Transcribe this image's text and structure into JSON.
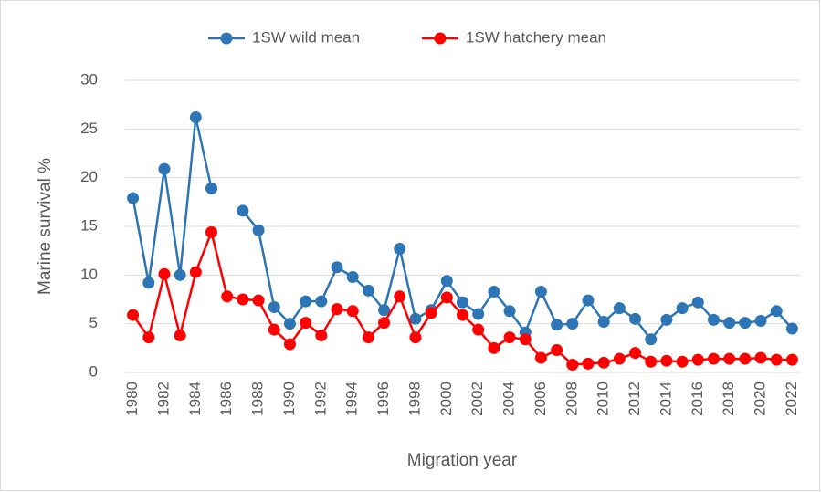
{
  "chart_data": {
    "type": "line",
    "y_label": "Marine survival %",
    "x_label": "Migration year",
    "x": [
      1980,
      1981,
      1982,
      1983,
      1984,
      1985,
      1986,
      1987,
      1988,
      1989,
      1990,
      1991,
      1992,
      1993,
      1994,
      1995,
      1996,
      1997,
      1998,
      1999,
      2000,
      2001,
      2002,
      2003,
      2004,
      2005,
      2006,
      2007,
      2008,
      2009,
      2010,
      2011,
      2012,
      2013,
      2014,
      2015,
      2016,
      2017,
      2018,
      2019,
      2020,
      2021,
      2022
    ],
    "series": [
      {
        "name": "1SW wild mean",
        "color": "#2e75b6",
        "values": [
          17.9,
          9.2,
          20.9,
          10.0,
          26.2,
          18.9,
          null,
          16.6,
          14.6,
          6.7,
          5.0,
          7.3,
          7.3,
          10.8,
          9.8,
          8.4,
          6.4,
          12.7,
          5.5,
          6.4,
          9.4,
          7.2,
          6.0,
          8.3,
          6.3,
          4.1,
          8.3,
          4.9,
          5.0,
          7.4,
          5.2,
          6.6,
          5.5,
          3.4,
          5.4,
          6.6,
          7.2,
          5.4,
          5.1,
          5.1,
          5.3,
          6.3,
          4.5
        ]
      },
      {
        "name": "1SW hatchery mean",
        "color": "#ff0000",
        "values": [
          5.9,
          3.6,
          10.1,
          3.8,
          10.3,
          14.4,
          7.8,
          7.5,
          7.4,
          4.4,
          2.9,
          5.1,
          3.8,
          6.5,
          6.3,
          3.6,
          5.1,
          7.8,
          3.6,
          6.1,
          7.7,
          5.9,
          4.4,
          2.5,
          3.6,
          3.4,
          1.5,
          2.3,
          0.8,
          0.9,
          1.0,
          1.4,
          2.0,
          1.1,
          1.2,
          1.1,
          1.3,
          1.4,
          1.4,
          1.4,
          1.5,
          1.3,
          1.3
        ]
      }
    ],
    "xlim": [
      1979.5,
      2022.5
    ],
    "xticks": [
      1980,
      1982,
      1984,
      1986,
      1988,
      1990,
      1992,
      1994,
      1996,
      1998,
      2000,
      2002,
      2004,
      2006,
      2008,
      2010,
      2012,
      2014,
      2016,
      2018,
      2020,
      2022
    ],
    "ylim": [
      0,
      30
    ],
    "yticks": [
      0,
      5,
      10,
      15,
      20,
      25,
      30
    ],
    "grid": true,
    "legend": "top"
  }
}
